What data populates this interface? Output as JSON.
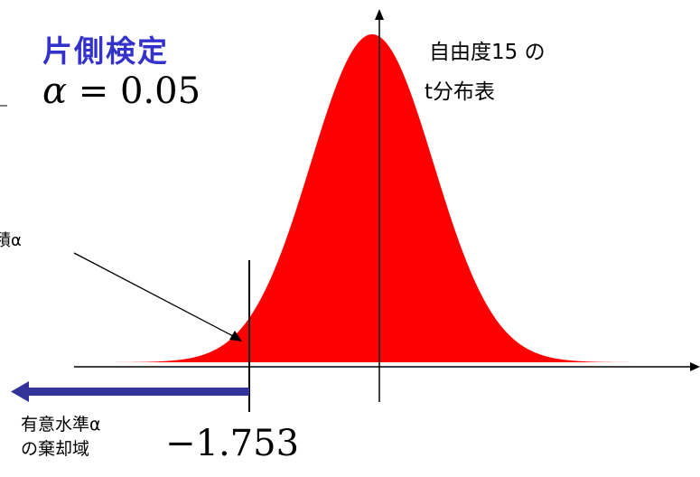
{
  "title": "片側検定",
  "alpha": {
    "symbol": "α",
    "equals": "=",
    "value": "0.05"
  },
  "dof_label": {
    "line1": "自由度15 の",
    "line2": "t分布表"
  },
  "area_label": "積α",
  "rejection_label": {
    "line1": "有意水準α",
    "line2": "の棄却域"
  },
  "critical_value": "−1.753",
  "colors": {
    "curve_fill": "#ff0000",
    "arrow": "#333399",
    "title": "#3333cc",
    "axis": "#000000"
  }
}
